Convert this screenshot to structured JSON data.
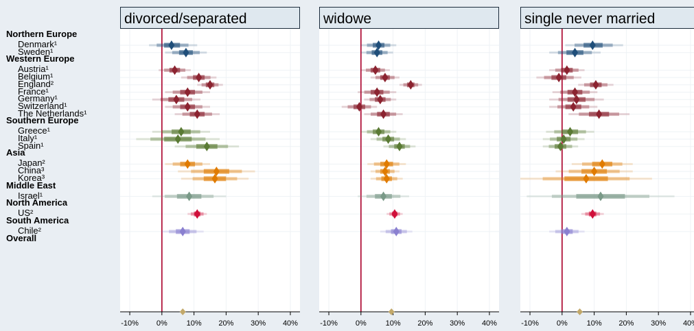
{
  "chart_data": {
    "type": "forest",
    "panels": [
      {
        "title": "divorced/separated"
      },
      {
        "title": "widowe"
      },
      {
        "title": "single never married"
      }
    ],
    "x_ticks": [
      "-10%",
      "0%",
      "10%",
      "20%",
      "30%",
      "40%"
    ],
    "x_tick_values": [
      -10,
      0,
      10,
      20,
      30,
      40
    ],
    "xlim": [
      -13,
      43
    ],
    "reference_line": 0,
    "colors": {
      "Northern Europe": "#1f4e79",
      "Western Europe": "#8b2330",
      "Southern Europe": "#5a7a34",
      "Asia": "#e07b00",
      "Middle East": "#7a9a88",
      "North America": "#d0103a",
      "South America": "#8a80d0",
      "Overall": "#c2a86a",
      "reference_line": "#b0123a"
    },
    "groups": [
      {
        "region": "Northern Europe",
        "countries": [
          {
            "label": "Denmark¹",
            "values": [
              {
                "est": 3.0,
                "lo": -4.0,
                "hi": 11.0
              },
              {
                "est": 5.5,
                "lo": 0.0,
                "hi": 11.0
              },
              {
                "est": 9.5,
                "lo": 1.0,
                "hi": 19.0
              }
            ]
          },
          {
            "label": "Sweden¹",
            "values": [
              {
                "est": 7.5,
                "lo": 1.0,
                "hi": 14.0
              },
              {
                "est": 5.0,
                "lo": 0.0,
                "hi": 10.0
              },
              {
                "est": 4.0,
                "lo": -4.0,
                "hi": 12.0
              }
            ]
          }
        ]
      },
      {
        "region": "Western Europe",
        "countries": [
          {
            "label": "Austria¹",
            "values": [
              {
                "est": 4.0,
                "lo": -1.0,
                "hi": 9.0
              },
              {
                "est": 4.5,
                "lo": 0.0,
                "hi": 9.0
              },
              {
                "est": 1.5,
                "lo": -4.0,
                "hi": 7.0
              }
            ]
          },
          {
            "label": "Belgium¹",
            "values": [
              {
                "est": 11.5,
                "lo": 6.0,
                "hi": 17.0
              },
              {
                "est": 7.5,
                "lo": 3.0,
                "hi": 12.0
              },
              {
                "est": -1.0,
                "lo": -8.0,
                "hi": 6.0
              }
            ]
          },
          {
            "label": "England²",
            "values": [
              {
                "est": 15.0,
                "lo": 11.0,
                "hi": 19.0
              },
              {
                "est": 15.5,
                "lo": 12.0,
                "hi": 19.0
              },
              {
                "est": 10.5,
                "lo": 5.0,
                "hi": 16.0
              }
            ]
          },
          {
            "label": "France¹",
            "values": [
              {
                "est": 8.0,
                "lo": 1.0,
                "hi": 15.0
              },
              {
                "est": 5.0,
                "lo": -1.0,
                "hi": 11.0
              },
              {
                "est": 4.0,
                "lo": -3.0,
                "hi": 11.0
              }
            ]
          },
          {
            "label": "Germany¹",
            "values": [
              {
                "est": 4.5,
                "lo": -3.0,
                "hi": 12.0
              },
              {
                "est": 6.0,
                "lo": 1.0,
                "hi": 11.0
              },
              {
                "est": 4.5,
                "lo": -4.0,
                "hi": 13.0
              }
            ]
          },
          {
            "label": "Switzerland¹",
            "values": [
              {
                "est": 8.0,
                "lo": 1.0,
                "hi": 15.0
              },
              {
                "est": -0.5,
                "lo": -6.0,
                "hi": 5.0
              },
              {
                "est": 3.5,
                "lo": -4.0,
                "hi": 11.0
              }
            ]
          },
          {
            "label": "The Netherlands¹",
            "values": [
              {
                "est": 11.0,
                "lo": 4.0,
                "hi": 18.0
              },
              {
                "est": 7.0,
                "lo": 1.0,
                "hi": 13.0
              },
              {
                "est": 11.5,
                "lo": 2.0,
                "hi": 21.0
              }
            ]
          }
        ]
      },
      {
        "region": "Southern Europe",
        "countries": [
          {
            "label": "Greece¹",
            "values": [
              {
                "est": 6.0,
                "lo": -3.0,
                "hi": 15.0
              },
              {
                "est": 5.5,
                "lo": 0.0,
                "hi": 11.0
              },
              {
                "est": 2.5,
                "lo": -5.0,
                "hi": 10.0
              }
            ]
          },
          {
            "label": "Italy¹",
            "values": [
              {
                "est": 5.0,
                "lo": -8.0,
                "hi": 18.0
              },
              {
                "est": 8.5,
                "lo": 3.0,
                "hi": 14.0
              },
              {
                "est": 0.5,
                "lo": -6.0,
                "hi": 7.0
              }
            ]
          },
          {
            "label": "Spain¹",
            "values": [
              {
                "est": 14.0,
                "lo": 4.0,
                "hi": 24.0
              },
              {
                "est": 12.0,
                "lo": 7.0,
                "hi": 17.0
              },
              {
                "est": -0.5,
                "lo": -6.0,
                "hi": 5.0
              }
            ]
          }
        ]
      },
      {
        "region": "Asia",
        "countries": [
          {
            "label": "Japan²",
            "values": [
              {
                "est": 8.0,
                "lo": 1.0,
                "hi": 15.0
              },
              {
                "est": 8.0,
                "lo": 2.0,
                "hi": 14.0
              },
              {
                "est": 12.5,
                "lo": 3.0,
                "hi": 22.0
              }
            ]
          },
          {
            "label": "China³",
            "values": [
              {
                "est": 17.0,
                "lo": 5.0,
                "hi": 29.0
              },
              {
                "est": 7.5,
                "lo": 3.0,
                "hi": 12.0
              },
              {
                "est": 10.0,
                "lo": -2.0,
                "hi": 22.0
              }
            ]
          },
          {
            "label": "Korea³",
            "values": [
              {
                "est": 16.5,
                "lo": 6.0,
                "hi": 27.0
              },
              {
                "est": 8.0,
                "lo": 3.0,
                "hi": 13.0
              },
              {
                "est": 7.5,
                "lo": -13.0,
                "hi": 28.0
              }
            ]
          }
        ]
      },
      {
        "region": "Middle East",
        "countries": [
          {
            "label": "Israel¹",
            "values": [
              {
                "est": 8.5,
                "lo": -3.0,
                "hi": 20.0
              },
              {
                "est": 7.0,
                "lo": -1.0,
                "hi": 15.0
              },
              {
                "est": 12.0,
                "lo": -11.0,
                "hi": 35.0
              }
            ]
          }
        ]
      },
      {
        "region": "North America",
        "countries": [
          {
            "label": "US²",
            "values": [
              {
                "est": 11.0,
                "lo": 8.0,
                "hi": 14.0
              },
              {
                "est": 10.5,
                "lo": 8.0,
                "hi": 13.0
              },
              {
                "est": 9.5,
                "lo": 6.0,
                "hi": 13.0
              }
            ]
          }
        ]
      },
      {
        "region": "South America",
        "countries": [
          {
            "label": "Chile²",
            "values": [
              {
                "est": 6.5,
                "lo": 0.0,
                "hi": 13.0
              },
              {
                "est": 11.0,
                "lo": 6.0,
                "hi": 16.0
              },
              {
                "est": 1.5,
                "lo": -4.0,
                "hi": 7.0
              }
            ]
          }
        ]
      },
      {
        "region": "Overall",
        "countries": [],
        "overall": [
          6.5,
          9.5,
          5.5
        ]
      }
    ]
  }
}
